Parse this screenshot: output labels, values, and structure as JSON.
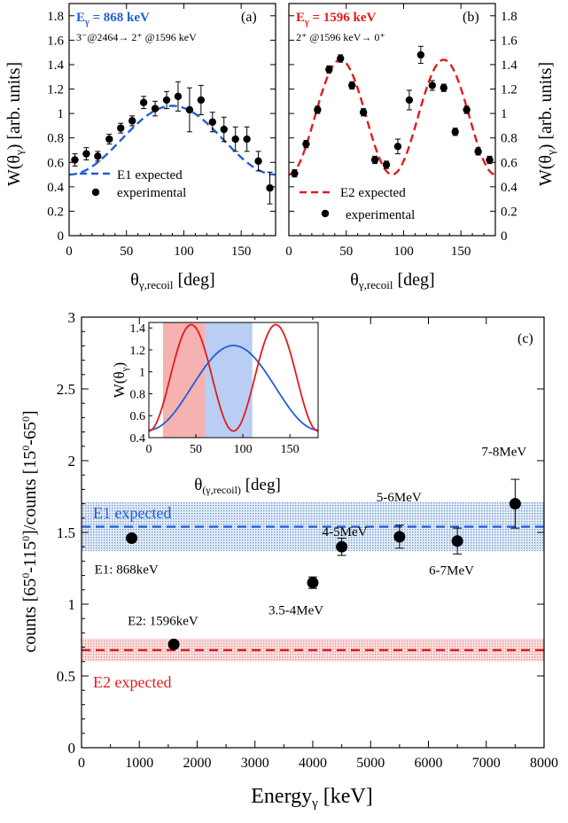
{
  "colors": {
    "e1": "#1f5fd6",
    "e2": "#e41a1c",
    "exp": "#000000",
    "band_e1": "#7fa8d8",
    "band_e2": "#f08a8a",
    "inset_red_fill": "#f4a3a3",
    "inset_blue_fill": "#aec6f2"
  },
  "chart_data": [
    {
      "id": "a",
      "type": "scatter",
      "panel_label": "(a)",
      "energy_label": "E_γ = 868 keV",
      "energy_sym": "E",
      "energy_sub": "γ",
      "energy_rest": " = 868 keV",
      "transition": "3⁻@2464→ 2⁺ @1596 keV",
      "xlabel": "θ_γ,recoil [deg]",
      "ylabel": "W(θ_γ) [arb. units]",
      "xlim": [
        0,
        180
      ],
      "ylim": [
        0,
        1.9
      ],
      "xticks": [
        0,
        50,
        100,
        150
      ],
      "yticks": [
        0,
        0.2,
        0.4,
        0.6,
        0.8,
        1,
        1.2,
        1.4,
        1.6,
        1.8
      ],
      "yaxis_side": "left",
      "legend": [
        "E1 expected",
        "experimental"
      ],
      "curve": {
        "type": "E1",
        "a0": 0.875,
        "a2": -0.375,
        "style": "dashed",
        "color": "#1f5fd6"
      },
      "points": [
        {
          "x": 5,
          "y": 0.62,
          "err": 0.05
        },
        {
          "x": 15,
          "y": 0.67,
          "err": 0.05
        },
        {
          "x": 25,
          "y": 0.65,
          "err": 0.04
        },
        {
          "x": 35,
          "y": 0.79,
          "err": 0.04
        },
        {
          "x": 45,
          "y": 0.88,
          "err": 0.04
        },
        {
          "x": 55,
          "y": 0.94,
          "err": 0.04
        },
        {
          "x": 65,
          "y": 1.09,
          "err": 0.05
        },
        {
          "x": 75,
          "y": 1.04,
          "err": 0.06
        },
        {
          "x": 85,
          "y": 1.11,
          "err": 0.07
        },
        {
          "x": 95,
          "y": 1.14,
          "err": 0.12
        },
        {
          "x": 105,
          "y": 1.03,
          "err": 0.18
        },
        {
          "x": 115,
          "y": 1.11,
          "err": 0.12
        },
        {
          "x": 125,
          "y": 0.93,
          "err": 0.08
        },
        {
          "x": 135,
          "y": 0.87,
          "err": 0.1
        },
        {
          "x": 145,
          "y": 0.79,
          "err": 0.1
        },
        {
          "x": 155,
          "y": 0.79,
          "err": 0.1
        },
        {
          "x": 165,
          "y": 0.61,
          "err": 0.08
        },
        {
          "x": 175,
          "y": 0.39,
          "err": 0.13
        }
      ]
    },
    {
      "id": "b",
      "type": "scatter",
      "panel_label": "(b)",
      "energy_label": "E_γ = 1596 keV",
      "energy_sym": "E",
      "energy_sub": "γ",
      "energy_rest": " = 1596 keV",
      "transition": "2⁺ @1596 keV→ 0⁺",
      "xlabel": "θ_γ,recoil [deg]",
      "ylabel": "W(θ_γ) [arb. units]",
      "xlim": [
        0,
        180
      ],
      "ylim": [
        0,
        1.9
      ],
      "xticks": [
        0,
        50,
        100,
        150
      ],
      "yticks": [
        0,
        0.2,
        0.4,
        0.6,
        0.8,
        1,
        1.2,
        1.4,
        1.6,
        1.8
      ],
      "yaxis_side": "right",
      "legend": [
        "E2 expected",
        "experimental"
      ],
      "curve": {
        "type": "E2",
        "a0": 0.97,
        "a2": 0.47,
        "style": "dashed",
        "color": "#e41a1c"
      },
      "points": [
        {
          "x": 5,
          "y": 0.51,
          "err": 0.03
        },
        {
          "x": 15,
          "y": 0.75,
          "err": 0.03
        },
        {
          "x": 25,
          "y": 1.03,
          "err": 0.03
        },
        {
          "x": 35,
          "y": 1.36,
          "err": 0.03
        },
        {
          "x": 45,
          "y": 1.45,
          "err": 0.03
        },
        {
          "x": 55,
          "y": 1.23,
          "err": 0.03
        },
        {
          "x": 65,
          "y": 1.01,
          "err": 0.03
        },
        {
          "x": 75,
          "y": 0.62,
          "err": 0.03
        },
        {
          "x": 85,
          "y": 0.58,
          "err": 0.03
        },
        {
          "x": 95,
          "y": 0.73,
          "err": 0.06
        },
        {
          "x": 105,
          "y": 1.11,
          "err": 0.08
        },
        {
          "x": 115,
          "y": 1.48,
          "err": 0.07
        },
        {
          "x": 125,
          "y": 1.23,
          "err": 0.04
        },
        {
          "x": 135,
          "y": 1.21,
          "err": 0.03
        },
        {
          "x": 145,
          "y": 0.85,
          "err": 0.03
        },
        {
          "x": 155,
          "y": 1.03,
          "err": 0.03
        },
        {
          "x": 165,
          "y": 0.69,
          "err": 0.03
        },
        {
          "x": 175,
          "y": 0.62,
          "err": 0.03
        }
      ]
    },
    {
      "id": "c",
      "type": "scatter",
      "panel_label": "(c)",
      "xlabel": "Energy_γ [keV]",
      "ylabel": "counts [65⁰-115⁰]/counts [15⁰-65⁰]",
      "xlim": [
        0,
        8000
      ],
      "ylim": [
        0,
        3
      ],
      "xticks": [
        0,
        1000,
        2000,
        3000,
        4000,
        5000,
        6000,
        7000,
        8000
      ],
      "yticks": [
        0,
        0.5,
        1,
        1.5,
        2,
        2.5,
        3
      ],
      "bands": [
        {
          "name": "E1 expected",
          "value": 1.54,
          "low": 1.37,
          "high": 1.71,
          "color": "#1f5fd6"
        },
        {
          "name": "E2 expected",
          "value": 0.68,
          "low": 0.6,
          "high": 0.76,
          "color": "#e41a1c"
        }
      ],
      "points": [
        {
          "x": 868,
          "y": 1.46,
          "err": 0.0,
          "label": "E1: 868keV"
        },
        {
          "x": 1596,
          "y": 0.72,
          "err": 0.0,
          "label": "E2: 1596keV"
        },
        {
          "x": 4000,
          "y": 1.15,
          "err": 0.04,
          "label": "3.5-4MeV"
        },
        {
          "x": 4500,
          "y": 1.4,
          "err": 0.06,
          "label": "4-5MeV"
        },
        {
          "x": 5500,
          "y": 1.47,
          "err": 0.08,
          "label": "5-6MeV"
        },
        {
          "x": 6500,
          "y": 1.44,
          "err": 0.09,
          "label": "6-7MeV"
        },
        {
          "x": 7500,
          "y": 1.7,
          "err": 0.17,
          "label": "7-8MeV"
        }
      ],
      "inset": {
        "xlabel": "θ_(γ,recoil) [deg]",
        "ylabel": "W(θ_γ)",
        "xlim": [
          0,
          180
        ],
        "ylim": [
          0.4,
          1.45
        ],
        "xticks": [
          0,
          50,
          100,
          150
        ],
        "yticks": [
          0.4,
          0.6,
          0.8,
          1,
          1.2,
          1.4
        ],
        "shaded_ranges": [
          {
            "from": 15,
            "to": 60,
            "color": "#f4a3a3"
          },
          {
            "from": 60,
            "to": 110,
            "color": "#aec6f2"
          }
        ]
      }
    }
  ]
}
